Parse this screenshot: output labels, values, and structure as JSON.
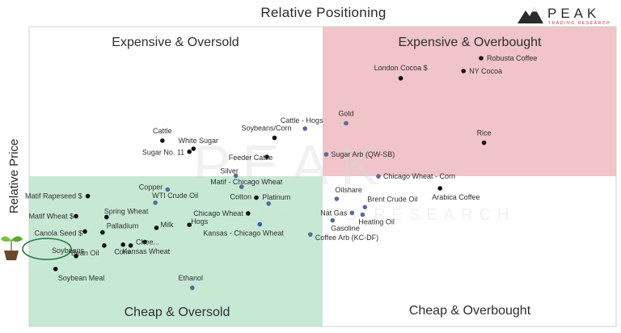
{
  "chart_data": {
    "type": "scatter",
    "title": "Relative Positioning",
    "ylabel": "Relative Price",
    "xlim": [
      0,
      100
    ],
    "ylim": [
      0,
      100
    ],
    "midpoint": [
      50,
      50
    ],
    "quadrants": [
      {
        "name": "Expensive & Oversold",
        "position": "top-left",
        "color": "#ffffff"
      },
      {
        "name": "Expensive & Overbought",
        "position": "top-right",
        "color": "#f0c4c8"
      },
      {
        "name": "Cheap & Oversold",
        "position": "bottom-left",
        "color": "#c7e9d4"
      },
      {
        "name": "Cheap & Overbought",
        "position": "bottom-right",
        "color": "#ffffff"
      }
    ],
    "points": [
      {
        "label": "Robusta Coffee",
        "x": 77.0,
        "y": 89.5,
        "color": "#111111"
      },
      {
        "label": "London Cocoa $",
        "x": 63.3,
        "y": 82.8,
        "color": "#111111"
      },
      {
        "label": "NY Cocoa",
        "x": 74.0,
        "y": 85.2,
        "color": "#111111"
      },
      {
        "label": "Gold",
        "x": 54.0,
        "y": 67.8,
        "color": "#5a6a9a"
      },
      {
        "label": "Cattle - Hogs",
        "x": 47.0,
        "y": 66.0,
        "color": "#5a6a9a"
      },
      {
        "label": "Soybeans/Corn",
        "x": 41.8,
        "y": 62.9,
        "color": "#111111"
      },
      {
        "label": "Cattle",
        "x": 22.7,
        "y": 62.0,
        "color": "#111111"
      },
      {
        "label": "White Sugar",
        "x": 28.0,
        "y": 59.3,
        "color": "#111111"
      },
      {
        "label": "Sugar No. 11",
        "x": 27.3,
        "y": 58.3,
        "color": "#111111"
      },
      {
        "label": "Feeder Cattle",
        "x": 40.5,
        "y": 56.6,
        "color": "#111111"
      },
      {
        "label": "Sugar Arb (QW-SB)",
        "x": 50.6,
        "y": 57.4,
        "color": "#5a6a9a"
      },
      {
        "label": "Rice",
        "x": 77.5,
        "y": 61.3,
        "color": "#111111"
      },
      {
        "label": "Silver",
        "x": 35.2,
        "y": 50.3,
        "color": "#5a6a9a"
      },
      {
        "label": "Chicago Wheat - Corn",
        "x": 59.5,
        "y": 50.1,
        "color": "#5a6a9a"
      },
      {
        "label": "Matif - Chicago Wheat",
        "x": 36.2,
        "y": 46.6,
        "color": "#5a6a9a"
      },
      {
        "label": "Arabica Coffee",
        "x": 70.0,
        "y": 46.1,
        "color": "#111111"
      },
      {
        "label": "Copper",
        "x": 23.6,
        "y": 45.7,
        "color": "#5a6a9a"
      },
      {
        "label": "Oilshare",
        "x": 52.4,
        "y": 42.6,
        "color": "#5a6a9a"
      },
      {
        "label": "Cotton",
        "x": 38.7,
        "y": 43.0,
        "color": "#111111"
      },
      {
        "label": "Matif Rapeseed $",
        "x": 10.0,
        "y": 43.5,
        "color": "#111111"
      },
      {
        "label": "WTI Crude Oil",
        "x": 21.5,
        "y": 41.3,
        "color": "#5a6a9a"
      },
      {
        "label": "Platinum",
        "x": 40.8,
        "y": 41.0,
        "color": "#5a6a9a"
      },
      {
        "label": "Brent Crude Oil",
        "x": 57.2,
        "y": 39.8,
        "color": "#5a6a9a"
      },
      {
        "label": "Nat Gas",
        "x": 55.0,
        "y": 37.9,
        "color": "#5a6a9a"
      },
      {
        "label": "Heating Oil",
        "x": 56.8,
        "y": 37.3,
        "color": "#5a6a9a"
      },
      {
        "label": "Matif Wheat $",
        "x": 8.0,
        "y": 36.8,
        "color": "#111111"
      },
      {
        "label": "Spring Wheat",
        "x": 13.2,
        "y": 36.5,
        "color": "#111111"
      },
      {
        "label": "Chicago Wheat",
        "x": 37.3,
        "y": 37.7,
        "color": "#111111"
      },
      {
        "label": "Gasoline",
        "x": 51.7,
        "y": 35.4,
        "color": "#5a6a9a"
      },
      {
        "label": "Milk",
        "x": 21.7,
        "y": 32.9,
        "color": "#111111"
      },
      {
        "label": "Hogs",
        "x": 27.3,
        "y": 33.9,
        "color": "#111111"
      },
      {
        "label": "Canola Seed $",
        "x": 9.5,
        "y": 31.7,
        "color": "#111111"
      },
      {
        "label": "Palladium",
        "x": 12.5,
        "y": 31.4,
        "color": "#111111"
      },
      {
        "label": "Kansas - Chicago Wheat",
        "x": 39.3,
        "y": 34.1,
        "color": "#3a5fa8"
      },
      {
        "label": "Coffee Arb (KC-DF)",
        "x": 47.9,
        "y": 30.7,
        "color": "#5a6a9a"
      },
      {
        "label": "Chee...",
        "x": 19.7,
        "y": 28.2,
        "color": "#111111"
      },
      {
        "label": "Bean Oil",
        "x": 12.8,
        "y": 27.0,
        "color": "#111111"
      },
      {
        "label": "Corn",
        "x": 16.0,
        "y": 27.3,
        "color": "#111111"
      },
      {
        "label": "Kansas Wheat",
        "x": 17.3,
        "y": 27.0,
        "color": "#111111"
      },
      {
        "label": "Soybeans",
        "x": 8.0,
        "y": 23.5,
        "color": "#111111"
      },
      {
        "label": "Soybean Meal",
        "x": 4.5,
        "y": 19.2,
        "color": "#111111"
      },
      {
        "label": "Ethanol",
        "x": 27.8,
        "y": 12.9,
        "color": "#5a6a9a"
      }
    ],
    "highlight": "Soybeans",
    "grid": false
  },
  "logo": {
    "word": "PEAK",
    "subtitle": "TRADING RESEARCH",
    "icon": "mountain-icon"
  },
  "side_icon": "seedling-icon"
}
